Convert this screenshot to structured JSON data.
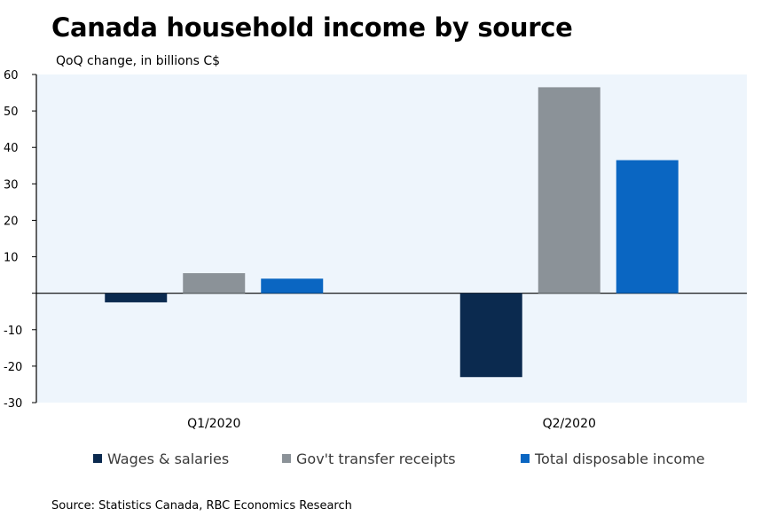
{
  "title": "Canada household income by source",
  "subtitle": "QoQ change, in billions C$",
  "source": "Source: Statistics Canada, RBC Economics Research",
  "chart_data": {
    "type": "bar",
    "categories": [
      "Q1/2020",
      "Q2/2020"
    ],
    "series": [
      {
        "name": "Wages & salaries",
        "values": [
          -2.5,
          -23
        ],
        "color": "#0b2a4f"
      },
      {
        "name": "Gov't transfer receipts",
        "values": [
          5.5,
          56.5
        ],
        "color": "#8b9298"
      },
      {
        "name": "Total disposable income",
        "values": [
          4,
          36.5
        ],
        "color": "#0a66c2"
      }
    ],
    "ylim": [
      -30,
      60
    ],
    "yticks": [
      -30,
      -20,
      -10,
      0,
      10,
      20,
      30,
      40,
      50,
      60
    ],
    "ytick_labels": [
      "-30",
      "-20",
      "-10",
      "",
      "10",
      "20",
      "30",
      "40",
      "50",
      "60"
    ],
    "xlabel": "",
    "ylabel": "",
    "legend_position": "bottom",
    "plot_background": "#eef5fc",
    "grid": false
  }
}
